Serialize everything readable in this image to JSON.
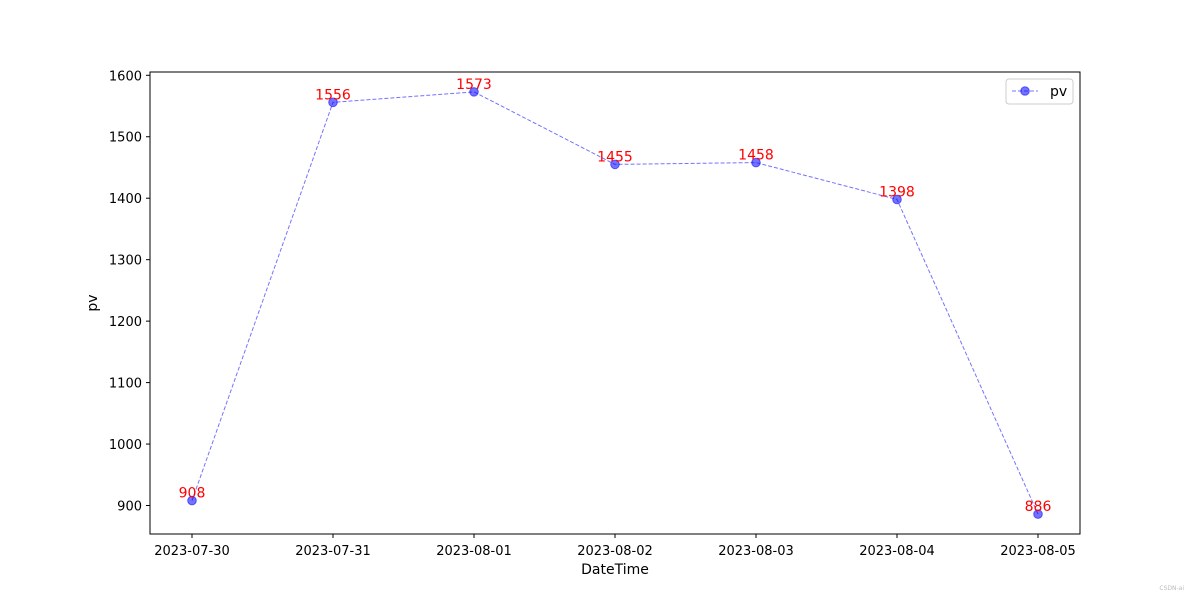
{
  "chart_data": {
    "type": "line",
    "title": "",
    "xlabel": "DateTime",
    "ylabel": "pv",
    "x": [
      "2023-07-30",
      "2023-07-31",
      "2023-08-01",
      "2023-08-02",
      "2023-08-03",
      "2023-08-04",
      "2023-08-05"
    ],
    "series": [
      {
        "name": "pv",
        "values": [
          908,
          1556,
          1573,
          1455,
          1458,
          1398,
          886
        ],
        "color": "#0000ff",
        "line_style": "dashed",
        "marker": "circle"
      }
    ],
    "data_labels": [
      "908",
      "1556",
      "1573",
      "1455",
      "1458",
      "1398",
      "886"
    ],
    "data_label_color": "#ff0000",
    "yticks": [
      900,
      1000,
      1100,
      1200,
      1300,
      1400,
      1500,
      1600
    ],
    "ylim": [
      853.65,
      1605.35
    ],
    "grid": false,
    "legend_position": "top-right"
  },
  "watermark": "CSDN-ai"
}
